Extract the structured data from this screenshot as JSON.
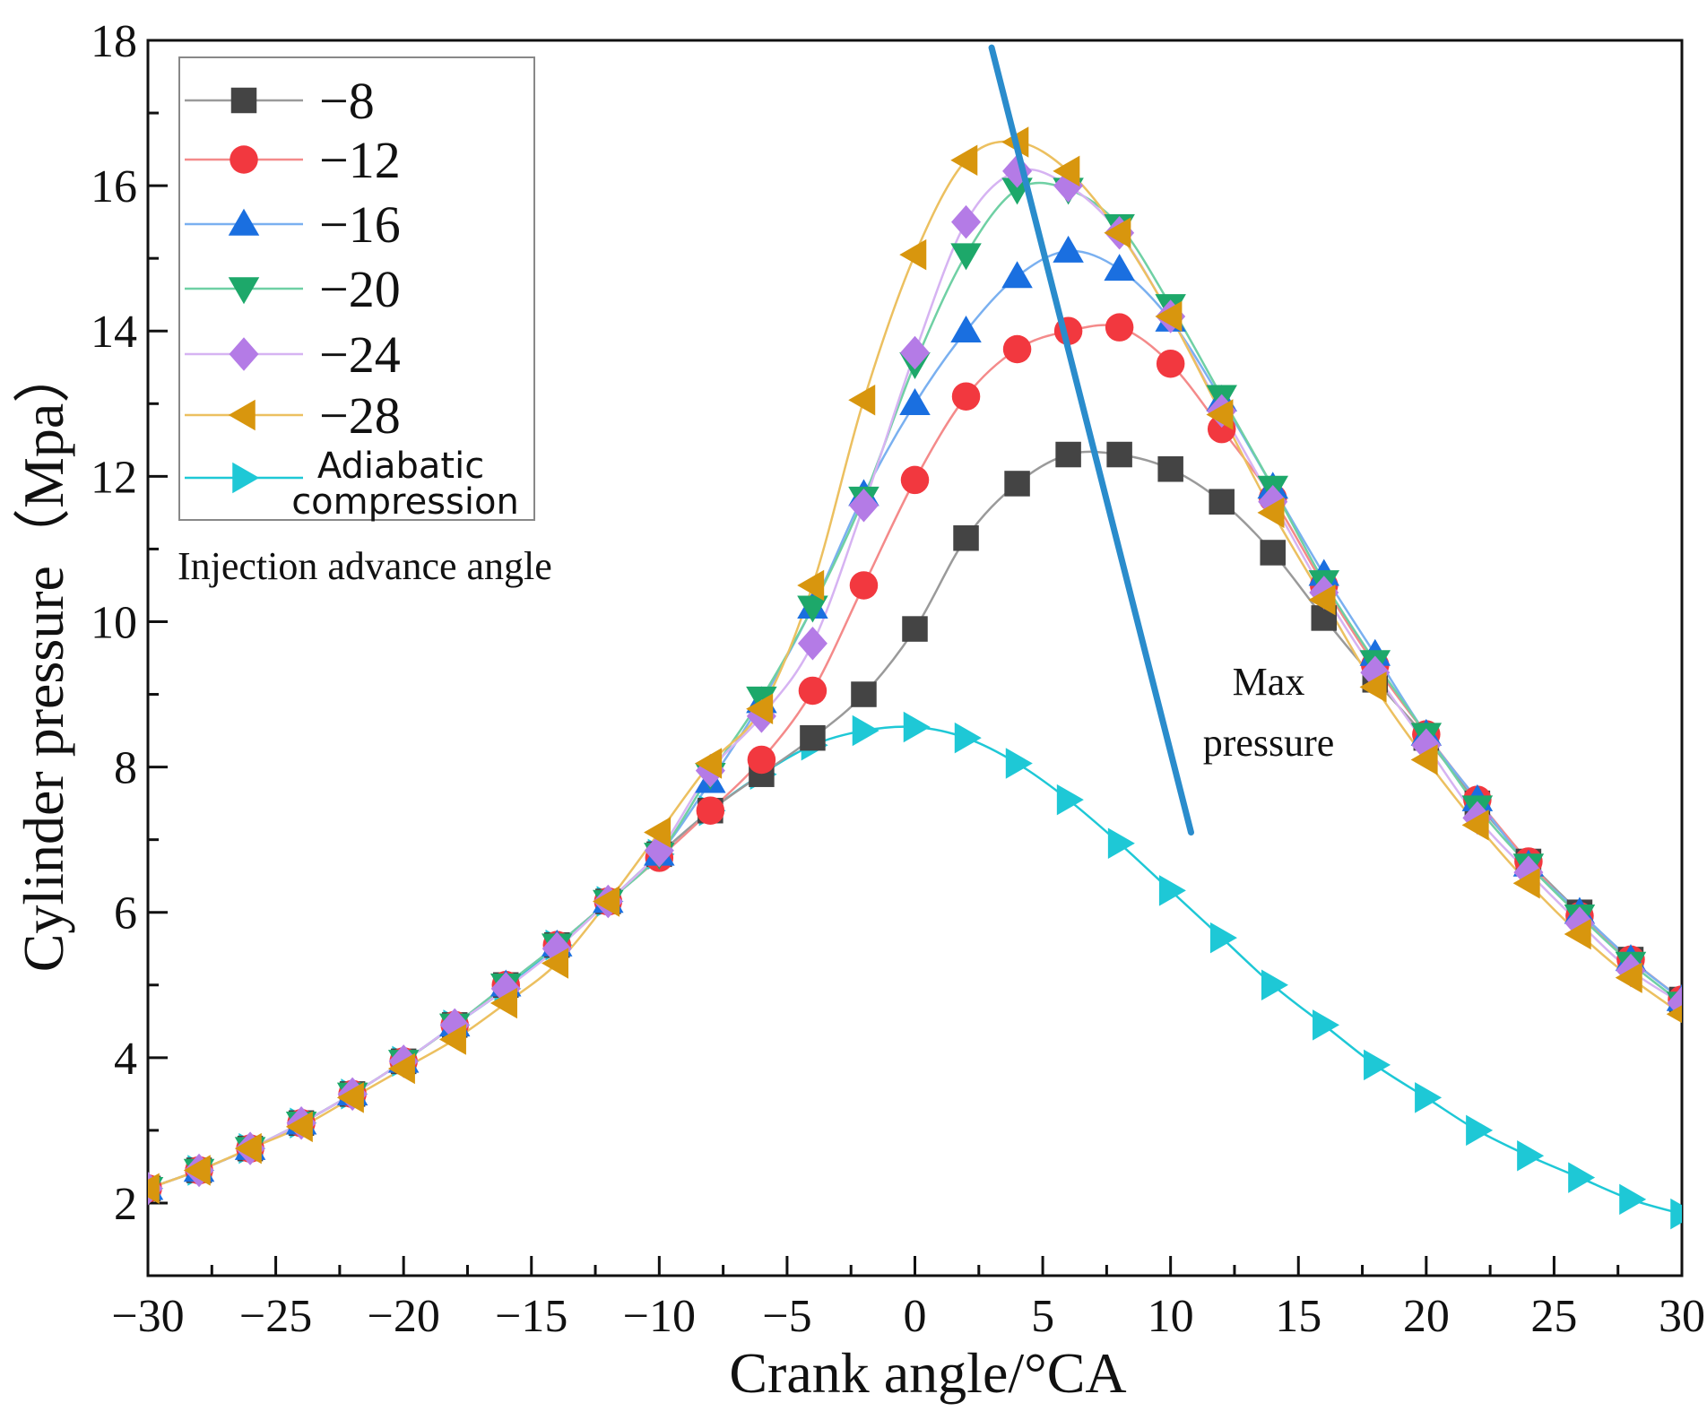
{
  "chart_data": {
    "type": "line",
    "title": "",
    "xlabel": "Crank angle/°CA",
    "ylabel": "Cylinder pressure（Mpa）",
    "xlim": [
      -30,
      30
    ],
    "ylim": [
      1,
      18
    ],
    "x_ticks": [
      -30,
      -25,
      -20,
      -15,
      -10,
      -5,
      0,
      5,
      10,
      15,
      20,
      25,
      30
    ],
    "x_tick_labels": [
      "−30",
      "−25",
      "−20",
      "−15",
      "−10",
      "−5",
      "0",
      "5",
      "10",
      "15",
      "20",
      "25",
      "30"
    ],
    "y_ticks": [
      2,
      4,
      6,
      8,
      10,
      12,
      14,
      16,
      18
    ],
    "y_tick_labels": [
      "2",
      "4",
      "6",
      "8",
      "10",
      "12",
      "14",
      "16",
      "18"
    ],
    "legend": {
      "placement": "top-left",
      "entries": [
        "−8",
        "−12",
        "−16",
        "−20",
        "−24",
        "−28",
        "Adiabatic compression"
      ],
      "adiabatic_line1": "Adiabatic",
      "adiabatic_line2": "compression",
      "title": "Injection advance angle"
    },
    "annotations": {
      "max_pressure_line1": "Max",
      "max_pressure_line2": "pressure",
      "max_pressure_line": [
        [
          3,
          17.9
        ],
        [
          10.8,
          7.1
        ]
      ],
      "max_pressure_line_color": "#2a8ccc"
    },
    "x": [
      -30,
      -28,
      -26,
      -24,
      -22,
      -20,
      -18,
      -16,
      -14,
      -12,
      -10,
      -8,
      -6,
      -4,
      -2,
      0,
      2,
      4,
      6,
      8,
      10,
      12,
      14,
      16,
      18,
      20,
      22,
      24,
      26,
      28,
      30
    ],
    "series": [
      {
        "name": "−8",
        "marker": "square",
        "color": "#444444",
        "line_color": "#9a9a9a",
        "values": [
          2.2,
          2.45,
          2.75,
          3.1,
          3.5,
          3.95,
          4.45,
          5.0,
          5.55,
          6.15,
          6.8,
          7.4,
          7.9,
          8.4,
          9.0,
          9.9,
          11.15,
          11.9,
          12.3,
          12.3,
          12.1,
          11.65,
          10.95,
          10.05,
          9.2,
          8.4,
          7.5,
          6.7,
          6.0,
          5.35,
          4.8
        ]
      },
      {
        "name": "−12",
        "marker": "circle",
        "color": "#f2383f",
        "line_color": "#f48a8a",
        "values": [
          2.2,
          2.45,
          2.75,
          3.1,
          3.5,
          3.95,
          4.45,
          5.0,
          5.55,
          6.15,
          6.75,
          7.4,
          8.1,
          9.05,
          10.5,
          11.95,
          13.1,
          13.75,
          14.0,
          14.05,
          13.55,
          12.65,
          11.7,
          10.5,
          9.4,
          8.45,
          7.55,
          6.7,
          5.95,
          5.35,
          4.8
        ]
      },
      {
        "name": "−16",
        "marker": "triangle-up",
        "color": "#1a6fe0",
        "line_color": "#7ab0f0",
        "values": [
          2.2,
          2.45,
          2.75,
          3.1,
          3.5,
          3.95,
          4.45,
          5.0,
          5.55,
          6.15,
          6.8,
          7.8,
          8.9,
          10.2,
          11.75,
          13.0,
          14.0,
          14.75,
          15.1,
          14.85,
          14.15,
          13.05,
          11.85,
          10.65,
          9.55,
          8.45,
          7.55,
          6.65,
          6.0,
          5.35,
          4.8
        ]
      },
      {
        "name": "−20",
        "marker": "triangle-down",
        "color": "#1da86a",
        "line_color": "#6fd0a4",
        "values": [
          2.2,
          2.45,
          2.75,
          3.1,
          3.5,
          3.95,
          4.45,
          5.0,
          5.55,
          6.15,
          6.8,
          7.9,
          8.95,
          10.2,
          11.7,
          13.55,
          15.05,
          15.95,
          15.95,
          15.45,
          14.35,
          13.1,
          11.85,
          10.55,
          9.45,
          8.45,
          7.45,
          6.65,
          5.95,
          5.3,
          4.75
        ]
      },
      {
        "name": "−24",
        "marker": "diamond",
        "color": "#b47be6",
        "line_color": "#d6b3f2",
        "values": [
          2.2,
          2.45,
          2.75,
          3.1,
          3.5,
          3.95,
          4.45,
          4.95,
          5.5,
          6.15,
          6.85,
          7.95,
          8.7,
          9.7,
          11.6,
          13.7,
          15.5,
          16.2,
          16.0,
          15.35,
          14.2,
          12.9,
          11.65,
          10.4,
          9.3,
          8.3,
          7.3,
          6.55,
          5.85,
          5.2,
          4.75
        ]
      },
      {
        "name": "−28",
        "marker": "triangle-left",
        "color": "#d8960e",
        "line_color": "#ecc060",
        "values": [
          2.2,
          2.45,
          2.75,
          3.05,
          3.45,
          3.85,
          4.25,
          4.75,
          5.3,
          6.15,
          7.1,
          8.05,
          8.8,
          10.5,
          13.05,
          15.05,
          16.35,
          16.6,
          16.2,
          15.35,
          14.2,
          12.85,
          11.5,
          10.3,
          9.1,
          8.1,
          7.2,
          6.4,
          5.7,
          5.1,
          4.6
        ]
      },
      {
        "name": "Adiabatic compression",
        "marker": "triangle-right",
        "color": "#1ec8d6",
        "line_color": "#1ec8d6",
        "values": [
          2.2,
          2.45,
          2.75,
          3.1,
          3.5,
          3.95,
          4.45,
          4.95,
          5.55,
          6.15,
          6.8,
          7.4,
          7.9,
          8.3,
          8.5,
          8.55,
          8.4,
          8.05,
          7.55,
          6.95,
          6.3,
          5.65,
          5.0,
          4.45,
          3.9,
          3.45,
          3.0,
          2.65,
          2.35,
          2.05,
          1.85
        ]
      }
    ]
  }
}
